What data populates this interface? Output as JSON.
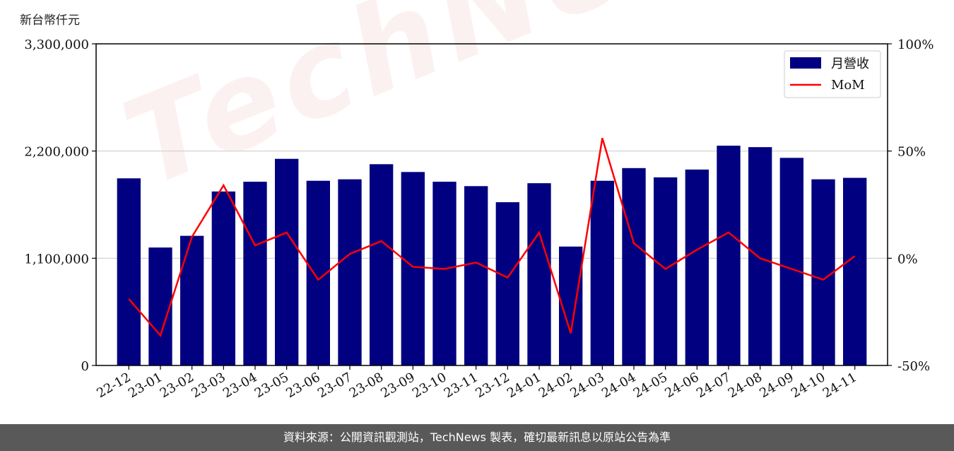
{
  "unit_label": "新台幣仟元",
  "footer_text": "資料來源：公開資訊觀測站，TechNews 製表，確切最新訊息以原站公告為準",
  "watermark_text": "TechNews",
  "chart_data": {
    "type": "bar",
    "categories": [
      "22-12",
      "23-01",
      "23-02",
      "23-03",
      "23-04",
      "23-05",
      "23-06",
      "23-07",
      "23-08",
      "23-09",
      "23-10",
      "23-11",
      "23-12",
      "24-01",
      "24-02",
      "24-03",
      "24-04",
      "24-05",
      "24-06",
      "24-07",
      "24-08",
      "24-09",
      "24-10",
      "24-11"
    ],
    "series": [
      {
        "name": "月營收",
        "type": "bar",
        "axis": "left",
        "color": "#000080",
        "values": [
          1920000,
          1210000,
          1330000,
          1785000,
          1885000,
          2120000,
          1895000,
          1910000,
          2065000,
          1985000,
          1885000,
          1840000,
          1675000,
          1870000,
          1220000,
          1895000,
          2025000,
          1930000,
          2010000,
          2255000,
          2240000,
          2130000,
          1910000,
          1925000
        ]
      },
      {
        "name": "MoM",
        "type": "line",
        "axis": "right",
        "color": "#ff0000",
        "values": [
          -19,
          -36,
          10,
          34,
          6,
          12,
          -10,
          2,
          8,
          -4,
          -5,
          -2,
          -9,
          12,
          -35,
          56,
          7,
          -5,
          4,
          12,
          0,
          -5,
          -10,
          1
        ]
      }
    ],
    "y_left": {
      "min": 0,
      "max": 3300000,
      "ticks": [
        0,
        1100000,
        2200000,
        3300000
      ],
      "tick_labels": [
        "0",
        "1,100,000",
        "2,200,000",
        "3,300,000"
      ]
    },
    "y_right": {
      "min": -50,
      "max": 100,
      "ticks": [
        -50,
        0,
        50,
        100
      ],
      "tick_labels": [
        "-50%",
        "0%",
        "50%",
        "100%"
      ]
    },
    "grid": true,
    "legend": {
      "position": "top-right",
      "entries": [
        "月營收",
        "MoM"
      ]
    },
    "title": "",
    "xlabel": "",
    "ylabel": ""
  }
}
